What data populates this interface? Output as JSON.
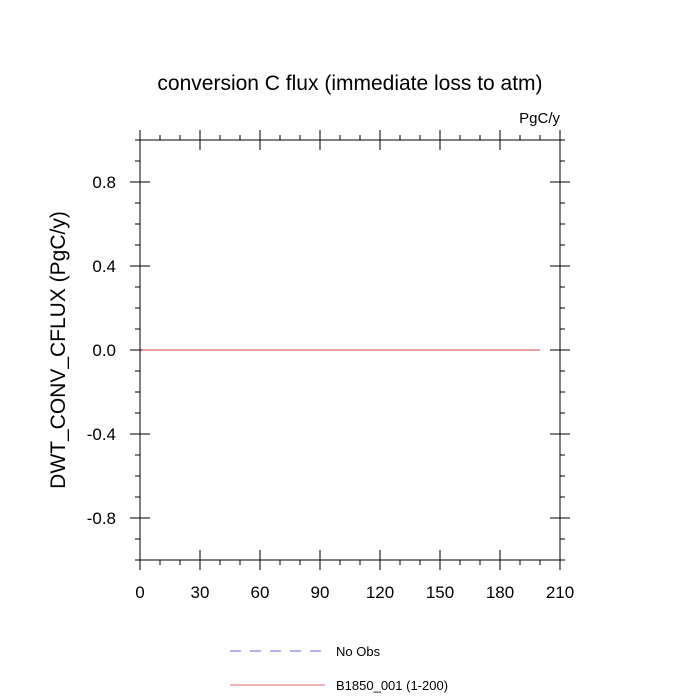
{
  "chart_data": {
    "type": "line",
    "title": "conversion C flux (immediate loss to atm)",
    "units_label": "PgC/y",
    "ylabel": "DWT_CONV_CFLUX  (PgC/y)",
    "xlabel": "",
    "xlim": [
      0,
      210
    ],
    "ylim": [
      -1,
      1
    ],
    "x_ticks": [
      0,
      30,
      60,
      90,
      120,
      150,
      180,
      210
    ],
    "x_tick_labels": [
      "0",
      "30",
      "60",
      "90",
      "120",
      "150",
      "180",
      "210"
    ],
    "x_minor_step": 10,
    "y_ticks": [
      0.8,
      0.4,
      0.0,
      -0.4,
      -0.8
    ],
    "y_tick_labels": [
      "0.8",
      "0.4",
      "0.0",
      "-0.4",
      "-0.8"
    ],
    "y_minor_step": 0.1,
    "grid": false,
    "legend_position": "bottom",
    "series": [
      {
        "name": "B1850_001 (1-200)",
        "color": "#e06666",
        "dash": "solid",
        "x": [
          1,
          200
        ],
        "y": [
          0.0,
          0.0
        ]
      }
    ],
    "legend": [
      {
        "label": "No Obs",
        "color": "#6666dd",
        "dash": "dashed"
      },
      {
        "label": "B1850_001 (1-200)",
        "color": "#e06666",
        "dash": "solid"
      }
    ]
  }
}
